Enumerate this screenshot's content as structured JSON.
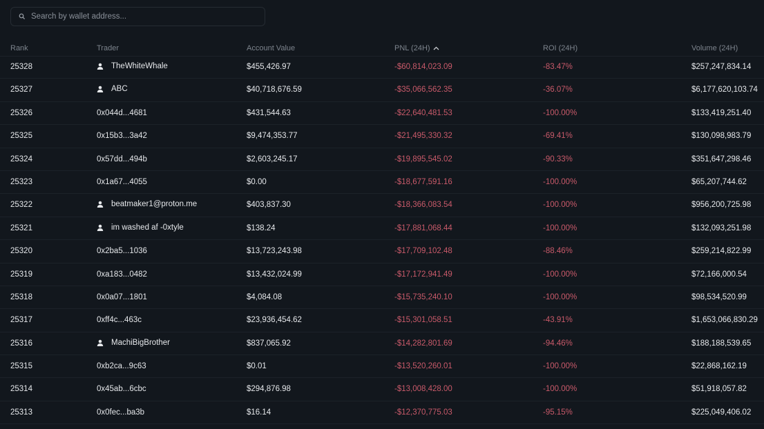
{
  "search": {
    "placeholder": "Search by wallet address...",
    "icon": "search-icon"
  },
  "colors": {
    "background": "#12171d",
    "negative": "#c95a6a",
    "header_text": "#7d848d"
  },
  "table": {
    "headers": {
      "rank": "Rank",
      "trader": "Trader",
      "account_value": "Account Value",
      "pnl": "PNL (24H)",
      "roi": "ROI (24H)",
      "volume": "Volume (24H)"
    },
    "sorted_by": "pnl",
    "sort_direction": "ascending",
    "rows": [
      {
        "rank": "25328",
        "trader": "TheWhiteWhale",
        "named": true,
        "account_value": "$455,426.97",
        "pnl": "-$60,814,023.09",
        "roi": "-83.47%",
        "volume": "$257,247,834.14"
      },
      {
        "rank": "25327",
        "trader": "ABC",
        "named": true,
        "account_value": "$40,718,676.59",
        "pnl": "-$35,066,562.35",
        "roi": "-36.07%",
        "volume": "$6,177,620,103.74"
      },
      {
        "rank": "25326",
        "trader": "0x044d...4681",
        "named": false,
        "account_value": "$431,544.63",
        "pnl": "-$22,640,481.53",
        "roi": "-100.00%",
        "volume": "$133,419,251.40"
      },
      {
        "rank": "25325",
        "trader": "0x15b3...3a42",
        "named": false,
        "account_value": "$9,474,353.77",
        "pnl": "-$21,495,330.32",
        "roi": "-69.41%",
        "volume": "$130,098,983.79"
      },
      {
        "rank": "25324",
        "trader": "0x57dd...494b",
        "named": false,
        "account_value": "$2,603,245.17",
        "pnl": "-$19,895,545.02",
        "roi": "-90.33%",
        "volume": "$351,647,298.46"
      },
      {
        "rank": "25323",
        "trader": "0x1a67...4055",
        "named": false,
        "account_value": "$0.00",
        "pnl": "-$18,677,591.16",
        "roi": "-100.00%",
        "volume": "$65,207,744.62"
      },
      {
        "rank": "25322",
        "trader": "beatmaker1@proton.me",
        "named": true,
        "account_value": "$403,837.30",
        "pnl": "-$18,366,083.54",
        "roi": "-100.00%",
        "volume": "$956,200,725.98"
      },
      {
        "rank": "25321",
        "trader": "im washed af -0xtyle",
        "named": true,
        "account_value": "$138.24",
        "pnl": "-$17,881,068.44",
        "roi": "-100.00%",
        "volume": "$132,093,251.98"
      },
      {
        "rank": "25320",
        "trader": "0x2ba5...1036",
        "named": false,
        "account_value": "$13,723,243.98",
        "pnl": "-$17,709,102.48",
        "roi": "-88.46%",
        "volume": "$259,214,822.99"
      },
      {
        "rank": "25319",
        "trader": "0xa183...0482",
        "named": false,
        "account_value": "$13,432,024.99",
        "pnl": "-$17,172,941.49",
        "roi": "-100.00%",
        "volume": "$72,166,000.54"
      },
      {
        "rank": "25318",
        "trader": "0x0a07...1801",
        "named": false,
        "account_value": "$4,084.08",
        "pnl": "-$15,735,240.10",
        "roi": "-100.00%",
        "volume": "$98,534,520.99"
      },
      {
        "rank": "25317",
        "trader": "0xff4c...463c",
        "named": false,
        "account_value": "$23,936,454.62",
        "pnl": "-$15,301,058.51",
        "roi": "-43.91%",
        "volume": "$1,653,066,830.29"
      },
      {
        "rank": "25316",
        "trader": "MachiBigBrother",
        "named": true,
        "account_value": "$837,065.92",
        "pnl": "-$14,282,801.69",
        "roi": "-94.46%",
        "volume": "$188,188,539.65"
      },
      {
        "rank": "25315",
        "trader": "0xb2ca...9c63",
        "named": false,
        "account_value": "$0.01",
        "pnl": "-$13,520,260.01",
        "roi": "-100.00%",
        "volume": "$22,868,162.19"
      },
      {
        "rank": "25314",
        "trader": "0x45ab...6cbc",
        "named": false,
        "account_value": "$294,876.98",
        "pnl": "-$13,008,428.00",
        "roi": "-100.00%",
        "volume": "$51,918,057.82"
      },
      {
        "rank": "25313",
        "trader": "0x0fec...ba3b",
        "named": false,
        "account_value": "$16.14",
        "pnl": "-$12,370,775.03",
        "roi": "-95.15%",
        "volume": "$225,049,406.02"
      }
    ]
  }
}
